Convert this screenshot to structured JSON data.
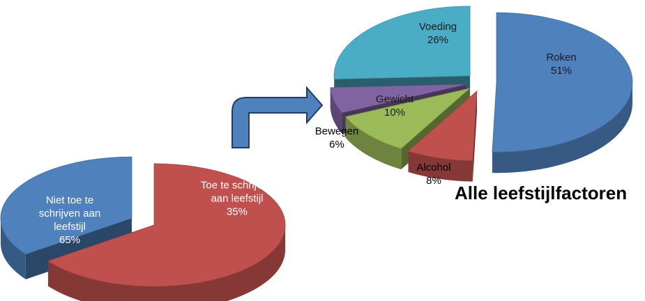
{
  "chart_data": [
    {
      "type": "pie",
      "categories": [
        "Niet toe te schrijven aan leefstijl",
        "Toe te schrijven aan leefstijl"
      ],
      "values": [
        65,
        35
      ],
      "value_labels": [
        "65%",
        "35%"
      ],
      "colors": [
        "#c0504d",
        "#4f81bd"
      ]
    },
    {
      "type": "pie",
      "title": "Alle leefstijlfactoren",
      "categories": [
        "Roken",
        "Alcohol",
        "Gewicht",
        "Bewegen",
        "Voeding"
      ],
      "values": [
        51,
        8,
        10,
        6,
        26
      ],
      "value_labels": [
        "51%",
        "8%",
        "10%",
        "6%",
        "26%"
      ],
      "colors": [
        "#4f81bd",
        "#c0504d",
        "#9bbb59",
        "#8064a2",
        "#4bacc6"
      ]
    }
  ]
}
